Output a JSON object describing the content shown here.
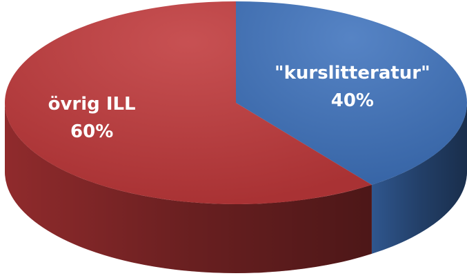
{
  "chart_data": {
    "type": "pie",
    "categories": [
      "\"kurslitteratur\"",
      "övrig ILL"
    ],
    "values": [
      40,
      60
    ],
    "value_labels": [
      "40%",
      "60%"
    ],
    "colors": [
      "#3f73bd",
      "#c0393b"
    ]
  }
}
